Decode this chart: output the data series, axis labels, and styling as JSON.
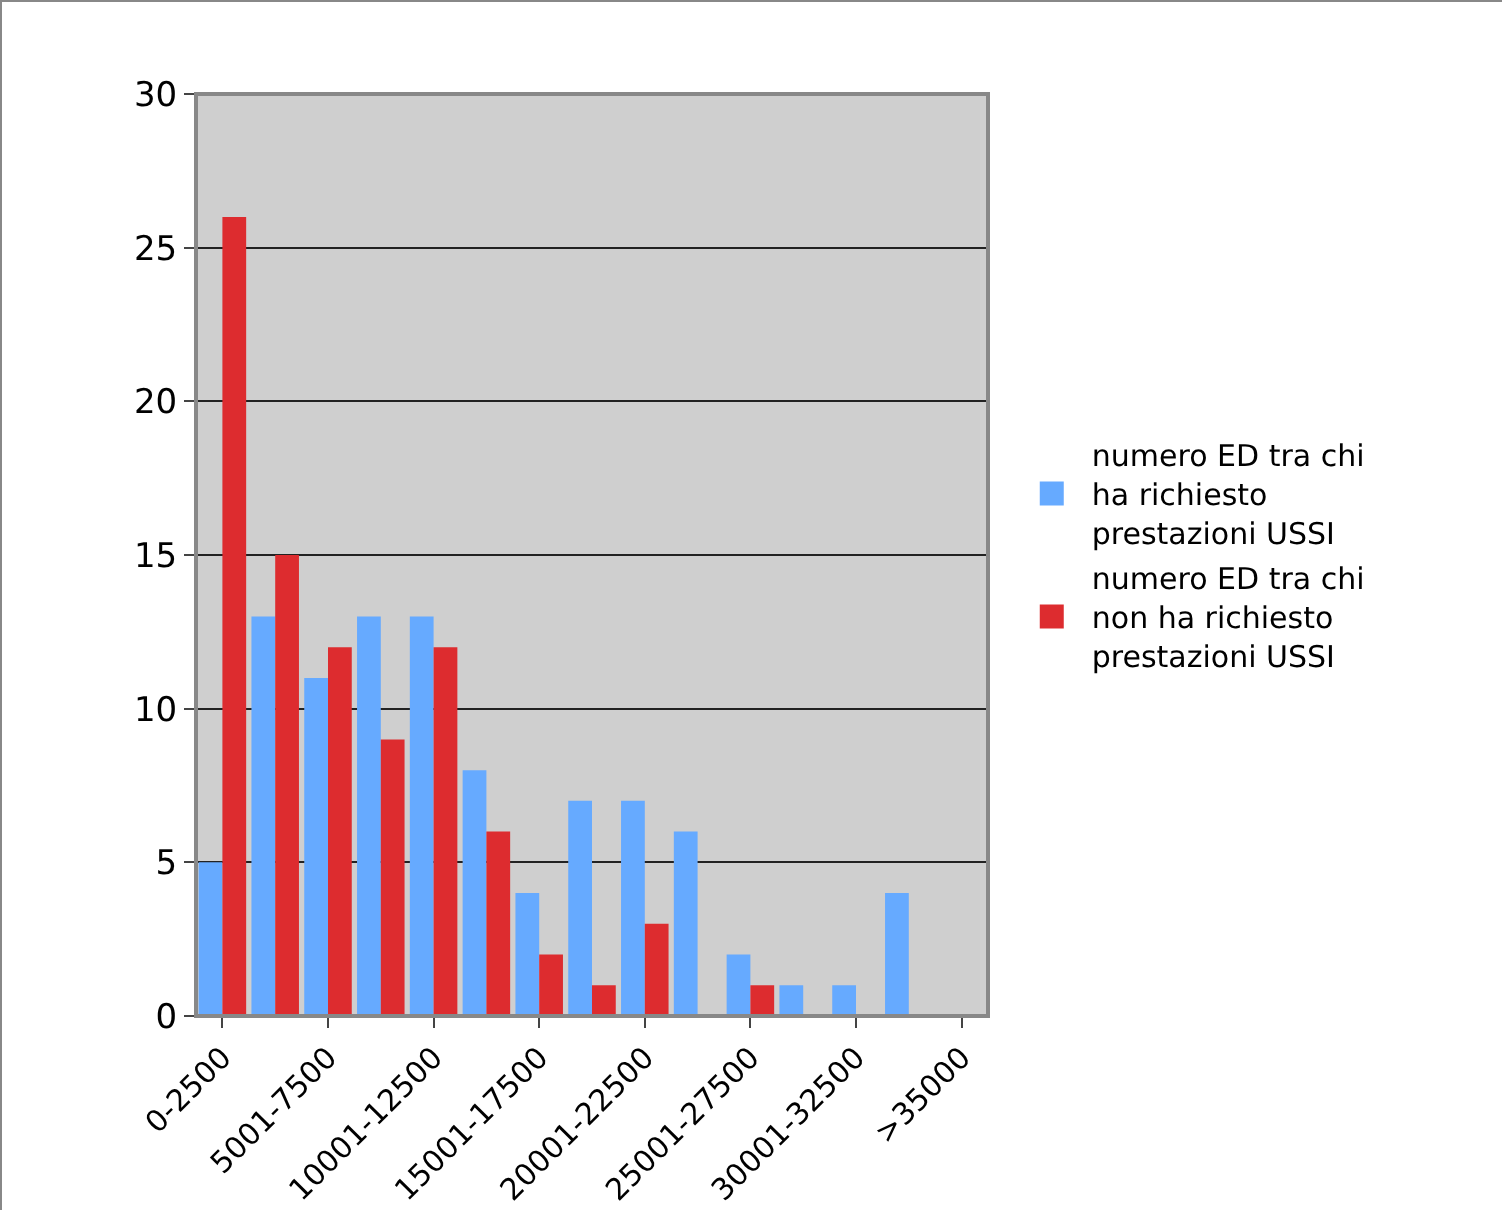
{
  "chart_data": {
    "type": "bar",
    "categories": [
      "0-2500",
      null,
      "5001-7500",
      null,
      "10001-12500",
      null,
      "15001-17500",
      null,
      "20001-22500",
      null,
      "25001-27500",
      null,
      "30001-32500",
      null,
      ">35000"
    ],
    "series": [
      {
        "name": "numero ED tra chi ha richiesto prestazioni USSI",
        "color": "#66aaff",
        "values": [
          5,
          13,
          11,
          13,
          13,
          8,
          4,
          7,
          7,
          6,
          2,
          1,
          1,
          4,
          0
        ]
      },
      {
        "name": "numero ED tra chi non ha richiesto prestazioni USSI",
        "color": "#dd2c2f",
        "values": [
          26,
          15,
          12,
          9,
          12,
          6,
          2,
          1,
          3,
          0,
          1,
          0,
          0,
          0,
          0
        ]
      }
    ],
    "ylim": [
      0,
      30
    ],
    "yticks": [
      0,
      5,
      10,
      15,
      20,
      25,
      30
    ],
    "grid": "y",
    "legend": "right"
  }
}
